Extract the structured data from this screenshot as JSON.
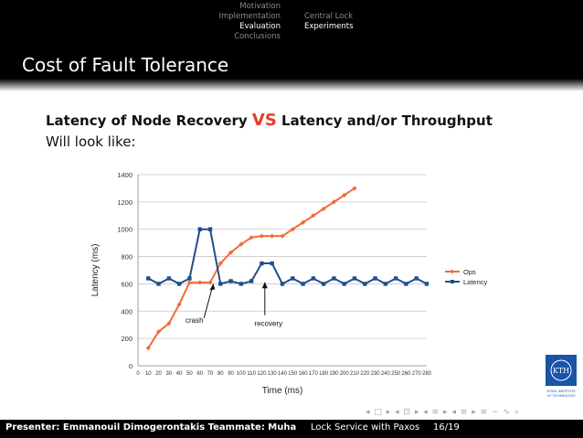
{
  "nav": {
    "sections_left": [
      "Motivation",
      "Implementation",
      "Evaluation",
      "Conclusions"
    ],
    "sections_left_active": "Evaluation",
    "sections_right": [
      "Central Lock",
      "Experiments"
    ],
    "sections_right_active": "Experiments"
  },
  "slide": {
    "title": "Cost of Fault Tolerance",
    "heading_left": "Latency of Node Recovery ",
    "heading_vs": "VS",
    "heading_right": " Latency and/or Throughput",
    "subtext": "Will look like:"
  },
  "chart_data": {
    "type": "line",
    "xlabel": "Time (ms)",
    "ylabel": "Latency (ms)",
    "x_ticks": [
      0,
      10,
      20,
      30,
      40,
      50,
      60,
      70,
      80,
      90,
      100,
      110,
      120,
      130,
      140,
      150,
      160,
      170,
      180,
      190,
      200,
      210,
      220,
      230,
      240,
      250,
      260,
      270,
      280
    ],
    "ylim": [
      0,
      1400
    ],
    "y_ticks": [
      0,
      200,
      400,
      600,
      800,
      1000,
      1200,
      1400
    ],
    "grid": "horizontal",
    "legend_placement": "right",
    "series": [
      {
        "name": "Ops",
        "color": "#f26b3a",
        "marker": "diamond",
        "x": [
          10,
          20,
          30,
          40,
          50,
          60,
          70,
          80,
          90,
          100,
          110,
          120,
          130,
          140,
          150,
          160,
          170,
          180,
          190,
          200,
          210
        ],
        "y": [
          130,
          250,
          310,
          450,
          610,
          610,
          610,
          750,
          830,
          890,
          940,
          950,
          950,
          950,
          1000,
          1050,
          1100,
          1150,
          1200,
          1250,
          1300
        ]
      },
      {
        "name": "Latency",
        "color": "#1f4e8c",
        "marker": "square",
        "x": [
          10,
          20,
          30,
          40,
          50,
          60,
          70,
          80,
          90,
          100,
          110,
          120,
          130,
          140,
          150,
          160,
          170,
          180,
          190,
          200,
          210,
          220,
          230,
          240,
          250,
          260,
          270,
          280
        ],
        "y": [
          640,
          600,
          640,
          600,
          640,
          1000,
          1000,
          600,
          620,
          600,
          620,
          750,
          750,
          600,
          640,
          600,
          640,
          600,
          640,
          600,
          640,
          600,
          640,
          600,
          640,
          600,
          640,
          600
        ]
      }
    ],
    "annotations": [
      {
        "text": "crash",
        "x": 62,
        "y": 300
      },
      {
        "text": "recovery",
        "x": 120,
        "y": 330
      }
    ]
  },
  "footer": {
    "presenter": "Presenter: Emmanouil Dimogerontakis Teammate: Muhammet",
    "talk_title": "Lock Service with Paxos",
    "page": "16/19"
  },
  "logo": {
    "text_main": "KTH",
    "text_sub1": "ROYAL INSTITUTE",
    "text_sub2": "OF TECHNOLOGY"
  },
  "beamer_nav_symbols": "◂ □ ▸ ◂ ⊡ ▸ ◂ ≡ ▸ ◂ ≡ ▸ ≡ ∽ ∿ ⌕"
}
